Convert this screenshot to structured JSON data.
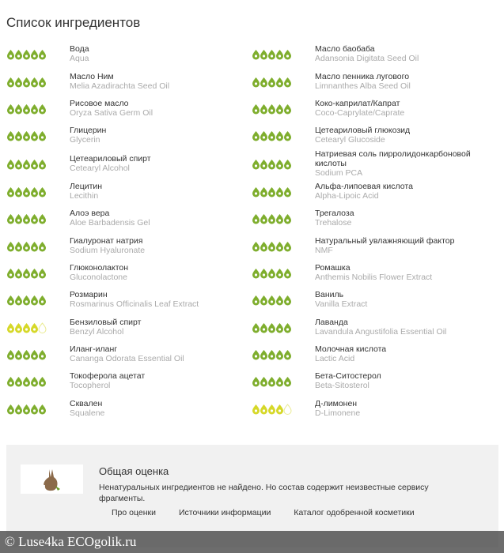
{
  "header": {
    "title": "Список ингредиентов"
  },
  "ingredients": {
    "left": [
      {
        "name": "Вода",
        "latin": "Aqua",
        "rating": 5,
        "color": "#7fae2e"
      },
      {
        "name": "Масло Ним",
        "latin": "Melia Azadirachta Seed Oil",
        "rating": 5,
        "color": "#7fae2e"
      },
      {
        "name": "Рисовое масло",
        "latin": "Oryza Sativa Germ Oil",
        "rating": 5,
        "color": "#7fae2e"
      },
      {
        "name": "Глицерин",
        "latin": "Glycerin",
        "rating": 5,
        "color": "#7fae2e"
      },
      {
        "name": "Цетеариловый спирт",
        "latin": "Cetearyl Alcohol",
        "rating": 5,
        "color": "#7fae2e"
      },
      {
        "name": "Лецитин",
        "latin": "Lecithin",
        "rating": 5,
        "color": "#7fae2e"
      },
      {
        "name": "Алоэ вера",
        "latin": "Aloe Barbadensis Gel",
        "rating": 5,
        "color": "#7fae2e"
      },
      {
        "name": "Гиалуронат натрия",
        "latin": "Sodium Hyaluronate",
        "rating": 5,
        "color": "#7fae2e"
      },
      {
        "name": "Глюконолактон",
        "latin": "Gluconolactone",
        "rating": 5,
        "color": "#7fae2e"
      },
      {
        "name": "Розмарин",
        "latin": "Rosmarinus Officinalis Leaf Extract",
        "rating": 5,
        "color": "#7fae2e"
      },
      {
        "name": "Бензиловый спирт",
        "latin": "Benzyl Alcohol",
        "rating": 4,
        "color": "#d6d829"
      },
      {
        "name": "Иланг-иланг",
        "latin": "Cananga Odorata Essential Oil",
        "rating": 5,
        "color": "#7fae2e"
      },
      {
        "name": "Токоферола ацетат",
        "latin": "Tocopherol",
        "rating": 5,
        "color": "#7fae2e"
      },
      {
        "name": "Сквален",
        "latin": "Squalene",
        "rating": 5,
        "color": "#7fae2e"
      }
    ],
    "right": [
      {
        "name": "Масло баобаба",
        "latin": "Adansonia Digitata Seed Oil",
        "rating": 5,
        "color": "#7fae2e"
      },
      {
        "name": "Масло пенника лугового",
        "latin": "Limnanthes Alba Seed Oil",
        "rating": 5,
        "color": "#7fae2e"
      },
      {
        "name": "Коко-каприлат/Капрат",
        "latin": "Coco-Caprylate/Caprate",
        "rating": 5,
        "color": "#7fae2e"
      },
      {
        "name": "Цетеариловый глюкозид",
        "latin": "Cetearyl Glucoside",
        "rating": 5,
        "color": "#7fae2e"
      },
      {
        "name": "Натриевая соль пирролидонкарбоновой кислоты",
        "latin": "Sodium PCA",
        "rating": 5,
        "color": "#7fae2e"
      },
      {
        "name": "Альфа-липоевая кислота",
        "latin": "Alpha-Lipoic Acid",
        "rating": 5,
        "color": "#7fae2e"
      },
      {
        "name": "Трегалоза",
        "latin": "Trehalose",
        "rating": 5,
        "color": "#7fae2e"
      },
      {
        "name": "Натуральный увлажняющий фактор",
        "latin": "NMF",
        "rating": 5,
        "color": "#7fae2e"
      },
      {
        "name": "Ромашка",
        "latin": "Anthemis Nobilis Flower Extract",
        "rating": 5,
        "color": "#7fae2e"
      },
      {
        "name": "Ваниль",
        "latin": "Vanilla Extract",
        "rating": 5,
        "color": "#7fae2e"
      },
      {
        "name": "Лаванда",
        "latin": "Lavandula Angustifolia Essential Oil",
        "rating": 5,
        "color": "#7fae2e"
      },
      {
        "name": "Молочная кислота",
        "latin": "Lactic Acid",
        "rating": 5,
        "color": "#7fae2e"
      },
      {
        "name": "Бета-Ситостерол",
        "latin": "Beta-Sitosterol",
        "rating": 5,
        "color": "#7fae2e"
      },
      {
        "name": "Д-лимонен",
        "latin": "D-Limonene",
        "rating": 4,
        "color": "#d6d829"
      }
    ]
  },
  "summary": {
    "title": "Общая оценка",
    "text": "Ненатуральных ингредиентов не найдено. Но состав содержит неизвестные сервису фрагменты.",
    "links": [
      "Про оценки",
      "Источники информации",
      "Каталог одобренной косметики"
    ]
  },
  "watermark": "© Luse4ka ECOgolik.ru"
}
